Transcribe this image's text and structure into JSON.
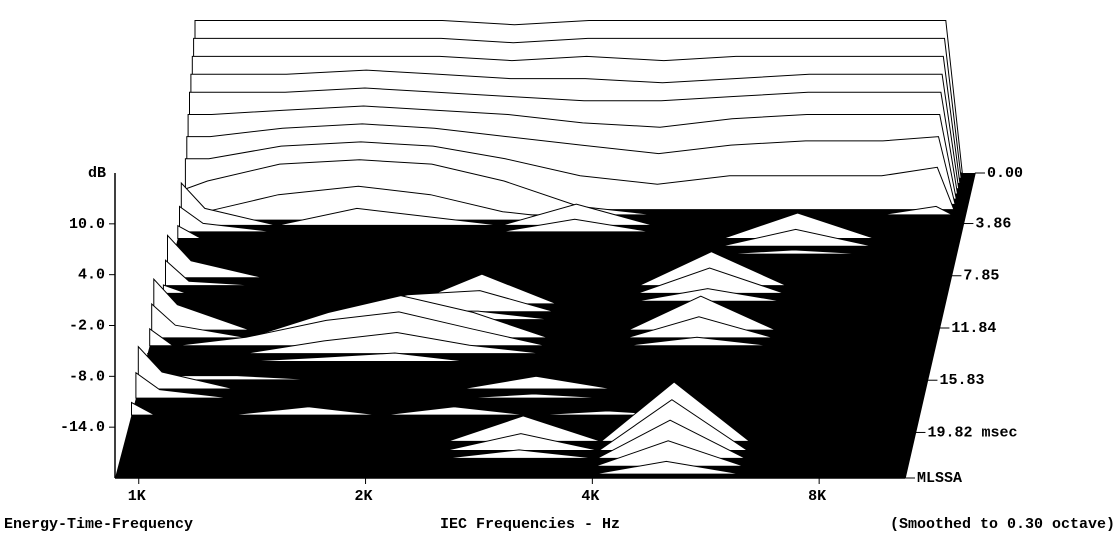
{
  "chart_data": {
    "type": "waterfall",
    "y_label": "dB",
    "x_label": "IEC Frequencies - Hz",
    "caption_left": "Energy-Time-Frequency",
    "caption_right": "(Smoothed to 0.30 octave)",
    "corner_label": "MLSSA",
    "log_x": true,
    "floor_color": "#000000",
    "line_color": "#000000",
    "fill_color": "#ffffff",
    "x": [
      930,
      1000,
      1250,
      1600,
      2000,
      2500,
      3150,
      4000,
      5000,
      6300,
      8000,
      9500,
      10000
    ],
    "xlim": [
      930,
      10400
    ],
    "xticks": [
      {
        "value": 1000,
        "label": "1K"
      },
      {
        "value": 2000,
        "label": "2K"
      },
      {
        "value": 4000,
        "label": "4K"
      },
      {
        "value": 8000,
        "label": "8K"
      }
    ],
    "ylim": [
      -20,
      16
    ],
    "yticks": [
      {
        "value": 10,
        "label": "10.0"
      },
      {
        "value": 4,
        "label": "4.0"
      },
      {
        "value": -2,
        "label": "-2.0"
      },
      {
        "value": -8,
        "label": "-8.0"
      },
      {
        "value": -14,
        "label": "-14.0"
      }
    ],
    "tlim": [
      0,
      23.3
    ],
    "tticks": [
      {
        "value": 0,
        "label": "0.00"
      },
      {
        "value": 3.86,
        "label": "3.86"
      },
      {
        "value": 7.85,
        "label": "7.85"
      },
      {
        "value": 11.84,
        "label": "11.84"
      },
      {
        "value": 15.83,
        "label": "15.83"
      },
      {
        "value": 19.82,
        "label": "19.82 msec"
      }
    ],
    "series": [
      {
        "time": 0.0,
        "values": [
          -2,
          -2,
          -2,
          -2,
          -2,
          -2.5,
          -2,
          -2,
          -2,
          -2,
          -2,
          -2,
          -20
        ]
      },
      {
        "time": 0.4,
        "values": [
          -3.5,
          -3.5,
          -3.5,
          -3.5,
          -3.5,
          -4,
          -3.5,
          -3.5,
          -3.5,
          -3.5,
          -3.5,
          -3.5,
          -20
        ]
      },
      {
        "time": 0.8,
        "values": [
          -5,
          -5,
          -5,
          -5,
          -5,
          -5.5,
          -5,
          -5.5,
          -5,
          -5,
          -5,
          -5,
          -20
        ]
      },
      {
        "time": 1.2,
        "values": [
          -6.5,
          -6.5,
          -6.5,
          -6,
          -6.5,
          -7,
          -7,
          -7.5,
          -7,
          -6.5,
          -6.5,
          -6.5,
          -20
        ]
      },
      {
        "time": 1.6,
        "values": [
          -8,
          -8,
          -8,
          -7.5,
          -8,
          -8.5,
          -9,
          -9,
          -8.5,
          -8,
          -8,
          -8,
          -20
        ]
      },
      {
        "time": 2.0,
        "values": [
          -10,
          -10,
          -9.5,
          -9,
          -9.5,
          -10,
          -11,
          -11.5,
          -10.5,
          -10,
          -10,
          -10,
          -20
        ]
      },
      {
        "time": 2.4,
        "values": [
          -12,
          -12,
          -11,
          -10.5,
          -11,
          -12,
          -13,
          -14,
          -13,
          -12.5,
          -12.5,
          -12,
          -20
        ]
      },
      {
        "time": 2.8,
        "values": [
          -14,
          -14,
          -12.5,
          -12,
          -12.5,
          -14,
          -16,
          -17,
          -16,
          -16,
          -16,
          -15,
          -20
        ]
      },
      {
        "time": 3.2,
        "values": [
          -17,
          -16,
          -14,
          -13.5,
          -14,
          -16,
          -19,
          -20,
          -20,
          -20,
          -20,
          -19,
          -20
        ]
      },
      {
        "time": 3.6,
        "values": [
          -20,
          -19,
          -17,
          -16,
          -17,
          -19,
          -20,
          null,
          null,
          null,
          null,
          null,
          null
        ]
      },
      {
        "time": 4.0,
        "values": [
          -15,
          -18,
          -20,
          -18,
          -19,
          -20,
          -17.5,
          -20,
          null,
          null,
          null,
          null,
          null
        ]
      },
      {
        "time": 4.5,
        "values": [
          -17,
          -19,
          -20,
          null,
          null,
          -20,
          -18.5,
          -20,
          null,
          null,
          null,
          null,
          null
        ]
      },
      {
        "time": 5.0,
        "values": [
          -18.5,
          -20,
          null,
          null,
          null,
          null,
          null,
          null,
          -20,
          -17,
          -20,
          null,
          null
        ]
      },
      {
        "time": 5.6,
        "values": [
          null,
          null,
          null,
          null,
          null,
          null,
          null,
          null,
          -20,
          -18,
          -20,
          null,
          null
        ]
      },
      {
        "time": 6.2,
        "values": [
          null,
          null,
          null,
          null,
          null,
          null,
          null,
          null,
          -20,
          -19.5,
          -20,
          null,
          null
        ]
      },
      {
        "time": 8.0,
        "values": [
          -15,
          -18,
          -20,
          null,
          null,
          null,
          null,
          null,
          null,
          null,
          null,
          null,
          null
        ]
      },
      {
        "time": 8.6,
        "values": [
          -17,
          -19.5,
          -20,
          null,
          null,
          null,
          null,
          -20,
          -16,
          -20,
          null,
          null,
          null
        ]
      },
      {
        "time": 9.2,
        "values": [
          -19,
          -20,
          null,
          null,
          null,
          null,
          null,
          -20,
          -17,
          -20,
          null,
          null,
          null
        ]
      },
      {
        "time": 9.8,
        "values": [
          null,
          null,
          null,
          null,
          null,
          null,
          null,
          -20,
          -18.5,
          -20,
          null,
          null,
          null
        ]
      },
      {
        "time": 10.0,
        "values": [
          null,
          null,
          null,
          null,
          -20,
          -16.5,
          -20,
          null,
          null,
          null,
          null,
          null,
          null
        ]
      },
      {
        "time": 10.6,
        "values": [
          null,
          null,
          null,
          -20,
          -18,
          -17.5,
          -20,
          null,
          null,
          null,
          null,
          null,
          null
        ]
      },
      {
        "time": 11.2,
        "values": [
          null,
          null,
          null,
          -20,
          -19,
          -19,
          -20,
          null,
          null,
          null,
          null,
          null,
          null
        ]
      },
      {
        "time": 12.0,
        "values": [
          -14,
          -17,
          -20,
          null,
          null,
          null,
          null,
          -20,
          -16,
          -20,
          null,
          null,
          null
        ]
      },
      {
        "time": 12.6,
        "values": [
          -16,
          -18.5,
          -20,
          -17,
          -15,
          -17,
          -20,
          -20,
          -17.5,
          -20,
          null,
          null,
          null
        ]
      },
      {
        "time": 13.2,
        "values": [
          -18,
          -20,
          -19,
          -17,
          -16,
          -18,
          -20,
          -20,
          -19,
          -20,
          null,
          null,
          null
        ]
      },
      {
        "time": 13.8,
        "values": [
          -20,
          -20,
          -20,
          -18.5,
          -17.5,
          -19,
          -20,
          null,
          null,
          null,
          null,
          null,
          null
        ]
      },
      {
        "time": 14.4,
        "values": [
          null,
          null,
          -20,
          -19.5,
          -19,
          -20,
          null,
          null,
          null,
          null,
          null,
          null,
          null
        ]
      },
      {
        "time": 15.8,
        "values": [
          null,
          -19.5,
          -19.5,
          -20,
          null,
          null,
          null,
          null,
          null,
          null,
          null,
          null,
          null
        ]
      },
      {
        "time": 16.5,
        "values": [
          -15,
          -18,
          -20,
          null,
          null,
          -20,
          -18.5,
          -20,
          null,
          null,
          null,
          null,
          null
        ]
      },
      {
        "time": 17.2,
        "values": [
          -17,
          -19,
          -20,
          null,
          null,
          -20,
          -19.5,
          -20,
          null,
          null,
          null,
          null,
          null
        ]
      },
      {
        "time": 18.5,
        "values": [
          -18.5,
          -20,
          -20,
          -19,
          -20,
          -19,
          -20,
          -19.5,
          -20,
          null,
          null,
          null,
          null
        ]
      },
      {
        "time": 20.5,
        "values": [
          null,
          null,
          null,
          null,
          null,
          -20,
          -17,
          -20,
          -13,
          -20,
          null,
          null,
          null
        ]
      },
      {
        "time": 21.2,
        "values": [
          null,
          null,
          null,
          null,
          null,
          -20,
          -18,
          -20,
          -14,
          -20,
          null,
          null,
          null
        ]
      },
      {
        "time": 21.8,
        "values": [
          null,
          null,
          null,
          null,
          null,
          -20,
          -19,
          -20,
          -15.5,
          -20,
          null,
          null,
          null
        ]
      },
      {
        "time": 22.4,
        "values": [
          null,
          null,
          null,
          null,
          null,
          null,
          null,
          -20,
          -17,
          -20,
          null,
          null,
          null
        ]
      },
      {
        "time": 23.0,
        "values": [
          null,
          null,
          null,
          null,
          null,
          null,
          null,
          -20,
          -18.5,
          -20,
          null,
          null,
          null
        ]
      }
    ]
  }
}
